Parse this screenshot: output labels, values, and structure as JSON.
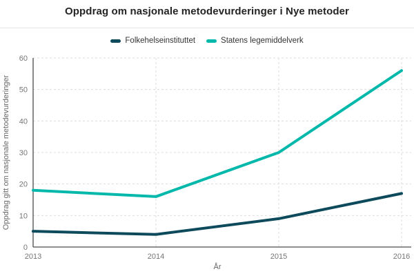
{
  "header": {
    "title": "Oppdrag om nasjonale metodevurderinger i Nye metoder"
  },
  "chart_data": {
    "type": "line",
    "title": "Oppdrag om nasjonale metodevurderinger i Nye metoder",
    "categories": [
      "2013",
      "2014",
      "2015",
      "2016"
    ],
    "series": [
      {
        "name": "Folkehelseinstituttet",
        "color": "#0d4a5c",
        "values": [
          5,
          4,
          9,
          17
        ]
      },
      {
        "name": "Statens legemiddelverk",
        "color": "#01b8aa",
        "values": [
          18,
          16,
          30,
          56
        ]
      }
    ],
    "xlabel": "År",
    "ylabel": "Oppdrag gitt om nasjonale metodevurderinger",
    "ylim": [
      0,
      60
    ],
    "ytick_step": 10,
    "grid": true,
    "grid_style": "dashed",
    "legend_position": "top-center",
    "colors": {
      "gridline": "#dcdcdc",
      "axis_line": "#4a4a4a",
      "tick_label": "#757575",
      "title": "#252423",
      "background": "#ffffff"
    }
  }
}
